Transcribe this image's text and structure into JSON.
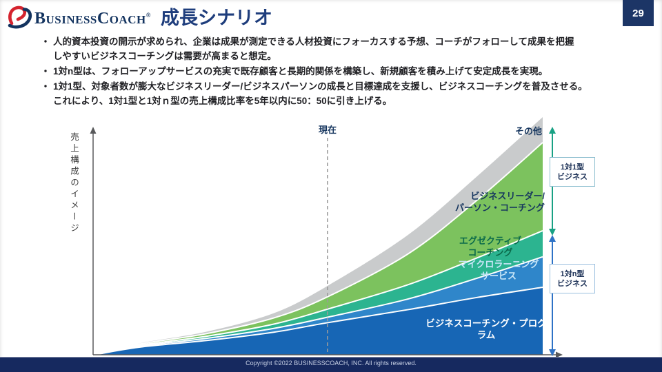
{
  "header": {
    "logo_business": "Business",
    "logo_coach": "Coach",
    "logo_reg": "®",
    "title": "成長シナリオ",
    "page_number": "29"
  },
  "bullets": [
    {
      "text": "人的資本投資の開示が求められ、企業は成果が測定できる人材投資にフォーカスする予想、コーチがフォローして成果を把握\nしやすいビジネスコーチングは需要が高まると想定。"
    },
    {
      "text": "1対n型は、フォローアップサービスの充実で既存顧客と長期的関係を構築し、新規顧客を積み上げて安定成長を実現。"
    },
    {
      "text": "1対1型、対象者数が膨大なビジネスリーダー/ビジネスパーソンの成長と目標達成を支援し、ビジネスコーチングを普及させる。\nこれにより、1対1型と1対ｎ型の売上構成比率を5年以内に50：50に引き上げる。"
    }
  ],
  "chart": {
    "y_axis_label": "売上構成のイメージ"
  },
  "chart_data": {
    "type": "area",
    "stacked": true,
    "title": "",
    "ylabel": "売上構成のイメージ",
    "xlabel": "",
    "x": [
      0,
      10,
      25,
      40,
      52,
      70,
      85,
      100
    ],
    "x_marker": {
      "label": "現在",
      "x": 52
    },
    "y_unit": "percent of final stacked height (イメージ図, no numeric axis shown)",
    "ylim": [
      0,
      100
    ],
    "grid": false,
    "series": [
      {
        "name": "ビジネスコーチング・プログラム",
        "label": "ビジネスコーチング・プログラム",
        "color": "#1766b5",
        "label_color": "#ffffff",
        "values": [
          0,
          3.2,
          6.0,
          9.5,
          13.5,
          19.0,
          24.0,
          28.4
        ]
      },
      {
        "name": "マイクロラーニングサービス",
        "label": "マイクロラーニング\nサービス",
        "color": "#2f86ca",
        "label_color": "#c8e6f8",
        "values": [
          0,
          0.4,
          0.9,
          1.6,
          2.3,
          4.5,
          8.0,
          12.8
        ]
      },
      {
        "name": "エグゼクティブコーチング",
        "label": "エグゼクティブ\nコーチング",
        "color": "#2cb490",
        "label_color": "#0a6a4a",
        "values": [
          0,
          0.4,
          0.9,
          1.8,
          3.4,
          6.0,
          8.5,
          11.0
        ]
      },
      {
        "name": "ビジネスリーダー/パーソン・コーチング",
        "label": "ビジネスリーダー/\nパーソン・コーチング",
        "color": "#7cc25e",
        "label_color": "#15355e",
        "values": [
          0,
          0.5,
          1.1,
          2.6,
          5.2,
          13.0,
          24.0,
          37.1
        ]
      },
      {
        "name": "その他",
        "label": "その他",
        "color": "#c9cbcc",
        "label_color": "#15355e",
        "values": [
          0,
          0.3,
          0.8,
          2.0,
          4.6,
          8.0,
          10.0,
          10.7
        ]
      }
    ],
    "separator_color": "#ffffff",
    "marker_line_color": "#9a9a9a",
    "axis_color": "#58595b"
  },
  "annotations": {
    "one_to_one": {
      "label": "1対1型\nビジネス",
      "arrow_color": "#19a184",
      "box_border": "#8cbecf"
    },
    "one_to_n": {
      "label": "1対n型\nビジネス",
      "arrow_color": "#2e72c6",
      "box_border": "#99bede"
    }
  },
  "footer": {
    "copyright": "Copyright ©2022 BUSINESSCOACH, INC. All rights reserved."
  }
}
